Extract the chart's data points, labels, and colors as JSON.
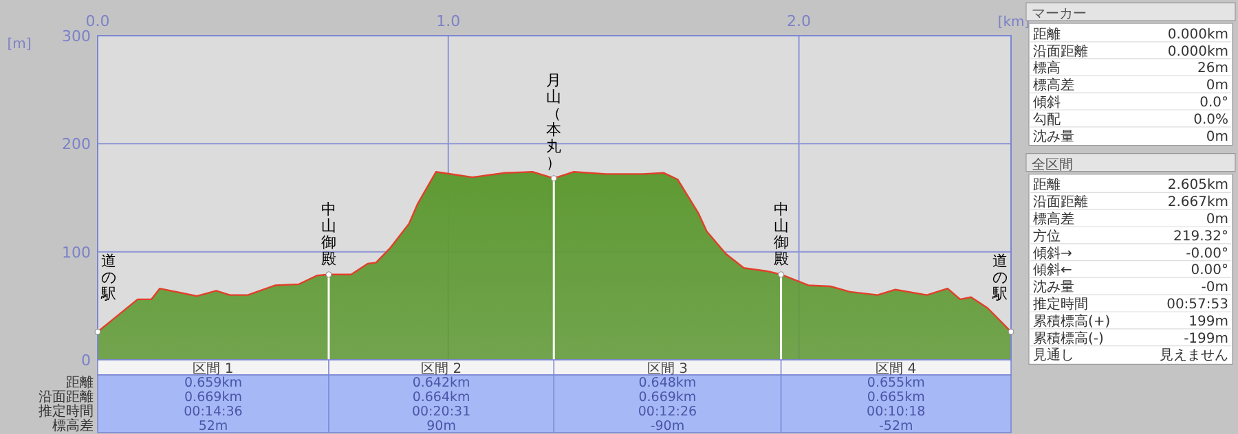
{
  "chart_data": [
    {
      "type": "area",
      "xlabel": "[km]",
      "ylabel": "[m]",
      "color": "#5f9a34",
      "x": [
        0,
        0.114,
        0.153,
        0.177,
        0.283,
        0.338,
        0.377,
        0.428,
        0.507,
        0.574,
        0.625,
        0.659,
        0.723,
        0.77,
        0.794,
        0.833,
        0.888,
        0.912,
        0.965,
        1.069,
        1.162,
        1.24,
        1.301,
        1.358,
        1.45,
        1.555,
        1.615,
        1.654,
        1.713,
        1.737,
        1.792,
        1.843,
        1.91,
        1.949,
        2.027,
        2.09,
        2.145,
        2.224,
        2.275,
        2.365,
        2.424,
        2.46,
        2.491,
        2.538,
        2.605
      ],
      "values": [
        26,
        56,
        56,
        66,
        59,
        64,
        60,
        60,
        69,
        70,
        78,
        79,
        79,
        89,
        90,
        103,
        126,
        144,
        174,
        169,
        173,
        174,
        168,
        174,
        172,
        172,
        173,
        167,
        136,
        119,
        98,
        85,
        82,
        79,
        69,
        68,
        63,
        60,
        65,
        60,
        66,
        56,
        58,
        48,
        26
      ],
      "xlim": [
        0,
        2.605
      ],
      "xticks": [
        {
          "value": 0,
          "label": "0.0"
        },
        {
          "value": 1,
          "label": "1.0"
        },
        {
          "value": 2,
          "label": "2.0"
        }
      ],
      "ylim": [
        0,
        300
      ],
      "yticks": [
        0,
        100,
        200,
        300
      ],
      "grid": true,
      "ref_lines": [
        {
          "axis": "x",
          "value": 0.659,
          "label": "中山御殿",
          "color": "#ffffff"
        },
        {
          "axis": "x",
          "value": 1.301,
          "label": "月山（本丸）",
          "color": "#ffffff"
        },
        {
          "axis": "x",
          "value": 1.949,
          "label": "中山御殿",
          "color": "#ffffff"
        }
      ],
      "annotations": [
        {
          "text": "道の駅",
          "x": 0,
          "y": 26
        },
        {
          "text": "道の駅",
          "x": 2.605,
          "y": 26
        },
        "距離",
        "沿面距離",
        "推定時間",
        "標高差",
        "区間 1",
        "0.659km",
        "0.669km",
        "00:14:36",
        "52m",
        "区間 2",
        "0.642km",
        "0.664km",
        "00:20:31",
        "90m",
        "区間 3",
        "0.648km",
        "0.669km",
        "00:12:26",
        "-90m",
        "区間 4",
        "0.655km",
        "0.665km",
        "00:10:18",
        "-52m"
      ]
    },
    {
      "type": "other",
      "title": "マーカー",
      "annotations": [
        "距離",
        "0.000km",
        "沿面距離",
        "0.000km",
        "標高",
        "26m",
        "標高差",
        "0m",
        "傾斜",
        "0.0°",
        "勾配",
        "0.0%",
        "沈み量",
        "0m"
      ]
    },
    {
      "type": "other",
      "title": "全区間",
      "annotations": [
        "距離",
        "2.605km",
        "沿面距離",
        "2.667km",
        "標高差",
        "0m",
        "方位",
        "219.32°",
        "傾斜→",
        "-0.00°",
        "傾斜←",
        "0.00°",
        "沈み量",
        "-0m",
        "推定時間",
        "00:57:53",
        "累積標高(+)",
        "199m",
        "累積標高(-)",
        "-199m",
        "見通し",
        "見えません"
      ]
    }
  ]
}
